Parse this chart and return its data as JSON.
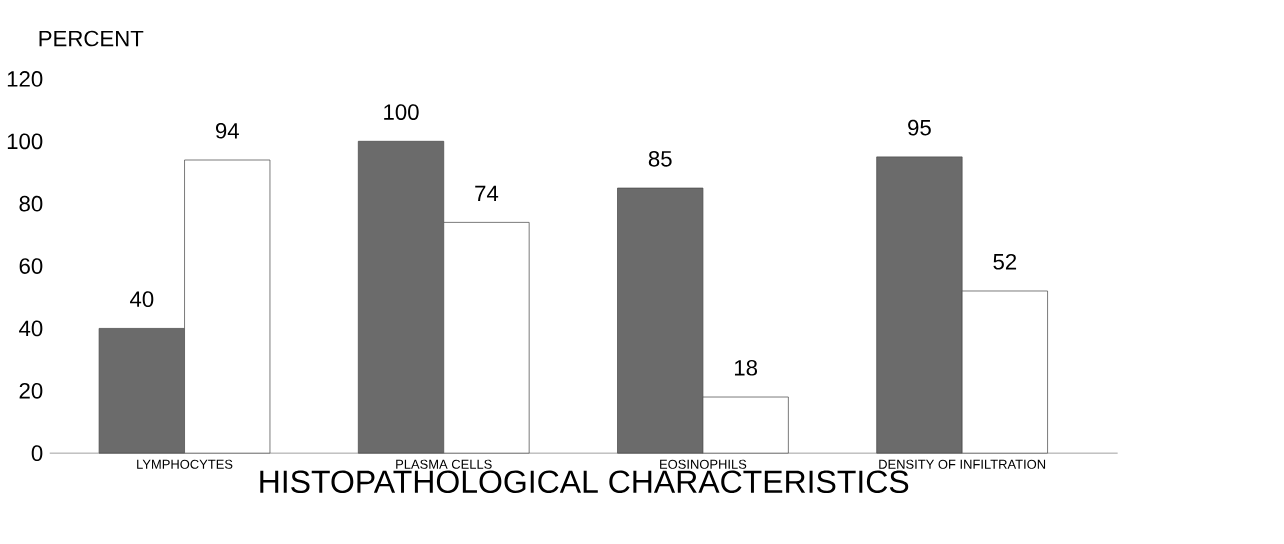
{
  "chart_data": {
    "type": "bar",
    "xlabel": "HISTOPATHOLOGICAL CHARACTERISTICS",
    "ylabel": "PERCENT",
    "categories": [
      "LYMPHOCYTES",
      "PLASMA CELLS",
      "EOSINOPHILS",
      "DENSITY OF INFILTRATION"
    ],
    "series": [
      {
        "color": "#6b6b6b",
        "values": [
          40,
          100,
          85,
          95
        ]
      },
      {
        "color": "#ffffff",
        "values": [
          94,
          74,
          18,
          52
        ]
      }
    ],
    "ylim": [
      0,
      120
    ],
    "yticks": [
      0,
      20,
      40,
      60,
      80,
      100,
      120
    ],
    "data_labels": true
  }
}
